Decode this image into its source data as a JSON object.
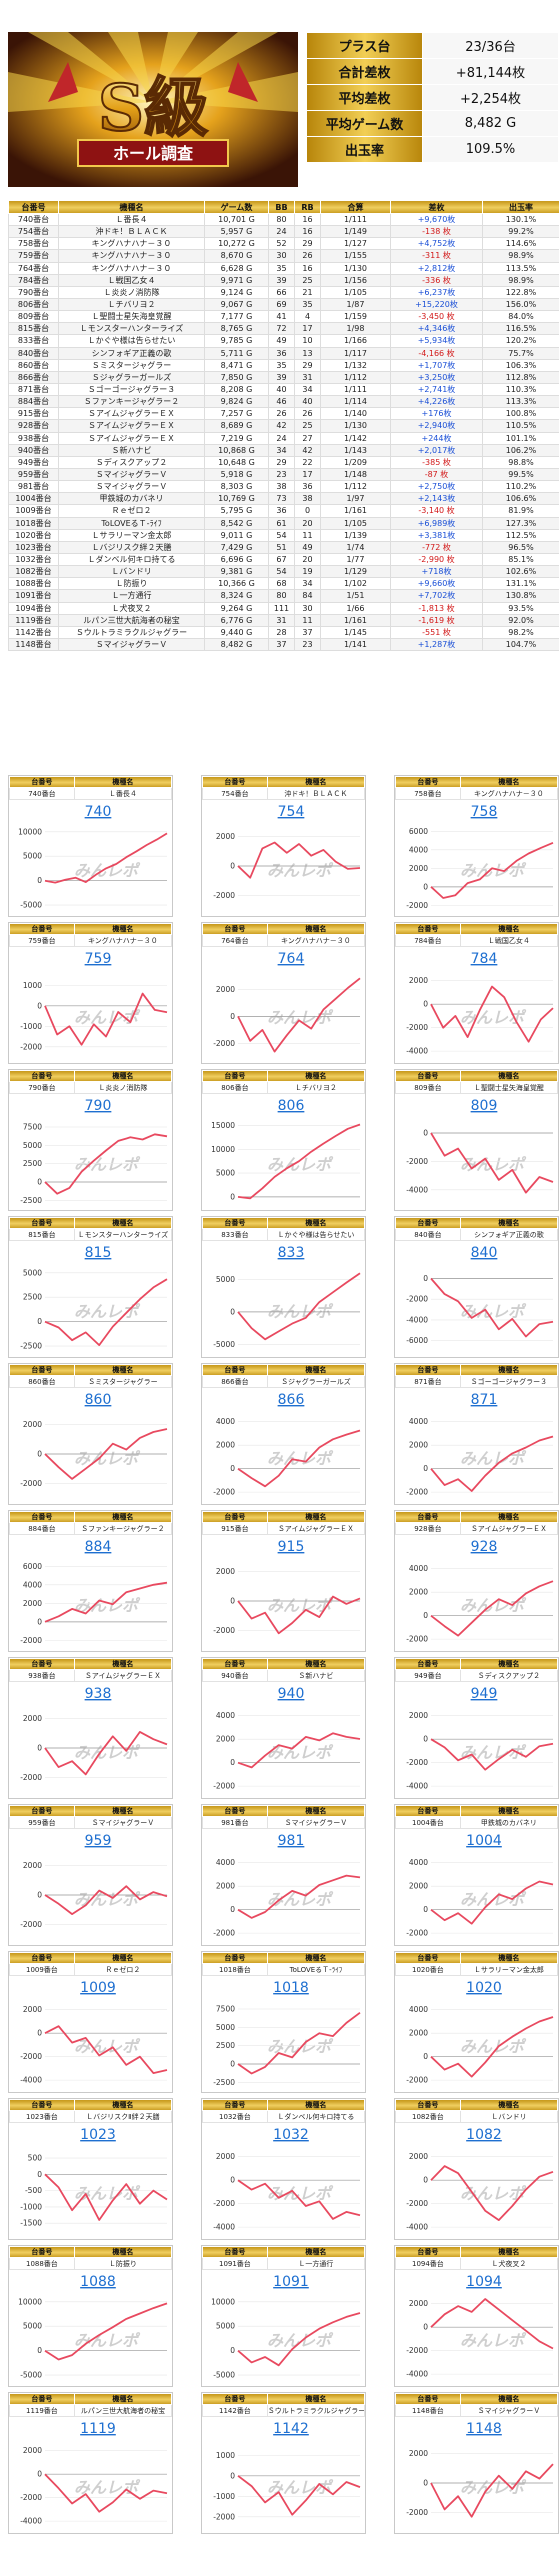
{
  "header": {
    "logo_text": "S級 ホール調査",
    "summary": [
      {
        "label": "プラス台",
        "value": "23/36台"
      },
      {
        "label": "合計差枚",
        "value": "+81,144枚"
      },
      {
        "label": "平均差枚",
        "value": "+2,254枚"
      },
      {
        "label": "平均ゲーム数",
        "value": "8,482 G"
      },
      {
        "label": "出玉率",
        "value": "109.5%"
      }
    ]
  },
  "table": {
    "columns": [
      "台番号",
      "機種名",
      "ゲーム数",
      "BB",
      "RB",
      "合算",
      "差枚",
      "出玉率"
    ],
    "rows": [
      [
        "740番台",
        "Ｌ番長４",
        "10,701 G",
        "80",
        "16",
        "1/111",
        "+9,670枚",
        "130.1%"
      ],
      [
        "754番台",
        "沖ドキ！ＢＬＡＣＫ",
        "5,957 G",
        "24",
        "16",
        "1/149",
        "-138 枚",
        "99.2%"
      ],
      [
        "758番台",
        "キングハナハナ－３０",
        "10,272 G",
        "52",
        "29",
        "1/127",
        "+4,752枚",
        "114.6%"
      ],
      [
        "759番台",
        "キングハナハナ－３０",
        "8,670 G",
        "30",
        "26",
        "1/155",
        "-311 枚",
        "98.9%"
      ],
      [
        "764番台",
        "キングハナハナ－３０",
        "6,628 G",
        "35",
        "16",
        "1/130",
        "+2,812枚",
        "113.5%"
      ],
      [
        "784番台",
        "Ｌ戦国乙女４",
        "9,971 G",
        "39",
        "25",
        "1/156",
        "-336 枚",
        "98.9%"
      ],
      [
        "790番台",
        "Ｌ炎炎ノ消防隊",
        "9,124 G",
        "66",
        "21",
        "1/105",
        "+6,237枚",
        "122.8%"
      ],
      [
        "806番台",
        "Ｌチバリヨ２",
        "9,067 G",
        "69",
        "35",
        "1/87",
        "+15,220枚",
        "156.0%"
      ],
      [
        "809番台",
        "Ｌ聖闘士星矢海皇覚醒",
        "7,177 G",
        "41",
        "4",
        "1/159",
        "-3,450 枚",
        "84.0%"
      ],
      [
        "815番台",
        "Ｌモンスターハンターライズ",
        "8,765 G",
        "72",
        "17",
        "1/98",
        "+4,346枚",
        "116.5%"
      ],
      [
        "833番台",
        "Ｌかぐや様は告らせたい",
        "9,785 G",
        "49",
        "10",
        "1/166",
        "+5,934枚",
        "120.2%"
      ],
      [
        "840番台",
        "シンフォギア正義の歌",
        "5,711 G",
        "36",
        "13",
        "1/117",
        "-4,166 枚",
        "75.7%"
      ],
      [
        "860番台",
        "Ｓミスタージャグラー",
        "8,471 G",
        "35",
        "29",
        "1/132",
        "+1,707枚",
        "106.3%"
      ],
      [
        "866番台",
        "Ｓジャグラーガールズ",
        "7,850 G",
        "39",
        "31",
        "1/112",
        "+3,250枚",
        "112.8%"
      ],
      [
        "871番台",
        "Ｓゴーゴージャグラー３",
        "8,208 G",
        "40",
        "34",
        "1/111",
        "+2,741枚",
        "110.3%"
      ],
      [
        "884番台",
        "Ｓファンキージャグラー２",
        "9,824 G",
        "46",
        "40",
        "1/114",
        "+4,226枚",
        "113.3%"
      ],
      [
        "915番台",
        "ＳアイムジャグラーＥＸ",
        "7,257 G",
        "26",
        "26",
        "1/140",
        "+176枚",
        "100.8%"
      ],
      [
        "928番台",
        "ＳアイムジャグラーＥＸ",
        "8,689 G",
        "42",
        "25",
        "1/130",
        "+2,940枚",
        "110.5%"
      ],
      [
        "938番台",
        "ＳアイムジャグラーＥＸ",
        "7,219 G",
        "24",
        "27",
        "1/142",
        "+244枚",
        "101.1%"
      ],
      [
        "940番台",
        "Ｓ新ハナビ",
        "10,868 G",
        "34",
        "42",
        "1/143",
        "+2,017枚",
        "106.2%"
      ],
      [
        "949番台",
        "Ｓディスクアップ２",
        "10,648 G",
        "29",
        "22",
        "1/209",
        "-385 枚",
        "98.8%"
      ],
      [
        "959番台",
        "ＳマイジャグラーＶ",
        "5,918 G",
        "23",
        "17",
        "1/148",
        "-87 枚",
        "99.5%"
      ],
      [
        "981番台",
        "ＳマイジャグラーＶ",
        "8,303 G",
        "38",
        "36",
        "1/112",
        "+2,750枚",
        "110.2%"
      ],
      [
        "1004番台",
        "甲鉄城のカバネリ",
        "10,769 G",
        "73",
        "38",
        "1/97",
        "+2,143枚",
        "106.6%"
      ],
      [
        "1009番台",
        "Ｒｅゼロ２",
        "5,795 G",
        "36",
        "0",
        "1/161",
        "-3,140 枚",
        "81.9%"
      ],
      [
        "1018番台",
        "ToLOVEるＴ-ﾗｲﾌ",
        "8,542 G",
        "61",
        "20",
        "1/105",
        "+6,989枚",
        "127.3%"
      ],
      [
        "1020番台",
        "Ｌサラリーマン金太郎",
        "9,011 G",
        "54",
        "11",
        "1/139",
        "+3,381枚",
        "112.5%"
      ],
      [
        "1023番台",
        "Ｌバジリスク絆２天膳",
        "7,429 G",
        "51",
        "49",
        "1/74",
        "-772 枚",
        "96.5%"
      ],
      [
        "1032番台",
        "Ｌダンベル何キロ持てる",
        "6,696 G",
        "67",
        "20",
        "1/77",
        "-2,990 枚",
        "85.1%"
      ],
      [
        "1082番台",
        "Ｌバンドリ",
        "9,381 G",
        "54",
        "19",
        "1/129",
        "+718枚",
        "102.6%"
      ],
      [
        "1088番台",
        "Ｌ防振り",
        "10,366 G",
        "68",
        "34",
        "1/102",
        "+9,660枚",
        "131.1%"
      ],
      [
        "1091番台",
        "Ｌ一方通行",
        "8,324 G",
        "80",
        "84",
        "1/51",
        "+7,702枚",
        "130.8%"
      ],
      [
        "1094番台",
        "Ｌ犬夜叉２",
        "9,264 G",
        "111",
        "30",
        "1/66",
        "-1,813 枚",
        "93.5%"
      ],
      [
        "1119番台",
        "ルパン三世大航海者の秘宝",
        "6,776 G",
        "31",
        "11",
        "1/161",
        "-1,619 枚",
        "92.0%"
      ],
      [
        "1142番台",
        "Ｓウルトラミラクルジャグラー",
        "9,440 G",
        "28",
        "37",
        "1/145",
        "-551 枚",
        "98.2%"
      ],
      [
        "1148番台",
        "ＳマイジャグラーＶ",
        "8,482 G",
        "37",
        "23",
        "1/141",
        "+1,287枚",
        "104.7%"
      ]
    ]
  },
  "cards_header": {
    "num": "台番号",
    "name": "機種名"
  },
  "watermark": "みんレポ",
  "cards": [
    {
      "dai": "740番台",
      "name": "Ｌ番長４",
      "link": "740",
      "yt": [
        "10000",
        "5000",
        "0",
        "-5000"
      ],
      "ymin": -6000,
      "ymax": 12000,
      "pts": [
        0,
        -400,
        200,
        600,
        -300,
        1200,
        2500,
        3400,
        4800,
        6000,
        7300,
        8400,
        9670
      ]
    },
    {
      "dai": "754番台",
      "name": "沖ドキ！ＢＬＡＣＫ",
      "link": "754",
      "yt": [
        "2000",
        "0",
        "-2000"
      ],
      "ymin": -3000,
      "ymax": 3000,
      "pts": [
        0,
        -800,
        1200,
        1600,
        900,
        1500,
        700,
        1100,
        300,
        -200,
        -138
      ]
    },
    {
      "dai": "758番台",
      "name": "キングハナハナ－３０",
      "link": "758",
      "yt": [
        "6000",
        "4000",
        "2000",
        "0",
        "-2000"
      ],
      "ymin": -2500,
      "ymax": 7000,
      "pts": [
        0,
        -1200,
        -900,
        400,
        800,
        2000,
        1700,
        2800,
        3600,
        4200,
        4752
      ]
    },
    {
      "dai": "759番台",
      "name": "キングハナハナ－３０",
      "link": "759",
      "yt": [
        "1000",
        "0",
        "-1000",
        "-2000"
      ],
      "ymin": -2500,
      "ymax": 1800,
      "pts": [
        0,
        -1400,
        -1000,
        -1900,
        -900,
        -1500,
        -300,
        -800,
        600,
        -200,
        -311
      ]
    },
    {
      "dai": "764番台",
      "name": "キングハナハナ－３０",
      "link": "764",
      "yt": [
        "2000",
        "0",
        "-2000"
      ],
      "ymin": -3000,
      "ymax": 3500,
      "pts": [
        0,
        -1800,
        -1000,
        -2600,
        -1400,
        -300,
        -900,
        500,
        1300,
        2100,
        2812
      ]
    },
    {
      "dai": "784番台",
      "name": "Ｌ戦国乙女４",
      "link": "784",
      "yt": [
        "2000",
        "0",
        "-2000",
        "-4000"
      ],
      "ymin": -4500,
      "ymax": 3000,
      "pts": [
        0,
        -2000,
        -1000,
        -2800,
        -500,
        1500,
        600,
        -1500,
        -3200,
        -1300,
        -336
      ]
    },
    {
      "dai": "790番台",
      "name": "Ｌ炎炎ノ消防隊",
      "link": "790",
      "yt": [
        "7500",
        "5000",
        "2500",
        "0",
        "-2500"
      ],
      "ymin": -3000,
      "ymax": 9000,
      "pts": [
        0,
        -1600,
        -800,
        1400,
        2900,
        4300,
        5600,
        6100,
        5800,
        6500,
        6237
      ]
    },
    {
      "dai": "806番台",
      "name": "Ｌチバリヨ２",
      "link": "806",
      "yt": [
        "15000",
        "10000",
        "5000",
        "0"
      ],
      "ymin": -1500,
      "ymax": 17000,
      "pts": [
        0,
        -300,
        1800,
        4200,
        6000,
        7500,
        9500,
        11200,
        12800,
        14300,
        15220
      ]
    },
    {
      "dai": "809番台",
      "name": "Ｌ聖闘士星矢海皇覚醒",
      "link": "809",
      "yt": [
        "0",
        "-2000",
        "-4000"
      ],
      "ymin": -5000,
      "ymax": 1200,
      "pts": [
        0,
        -1600,
        -1100,
        -2500,
        -1800,
        -3300,
        -2600,
        -4200,
        -3100,
        -3450
      ]
    },
    {
      "dai": "815番台",
      "name": "Ｌモンスターハンターライズ",
      "link": "815",
      "yt": [
        "5000",
        "2500",
        "0",
        "-2500"
      ],
      "ymin": -3000,
      "ymax": 6000,
      "pts": [
        0,
        -600,
        -1900,
        -1100,
        -2400,
        -500,
        900,
        2300,
        3500,
        4346
      ]
    },
    {
      "dai": "833番台",
      "name": "Ｌかぐや様は告らせたい",
      "link": "833",
      "yt": [
        "5000",
        "0",
        "-5000"
      ],
      "ymin": -6000,
      "ymax": 7500,
      "pts": [
        0,
        -2500,
        -4200,
        -3000,
        -1800,
        -900,
        1500,
        3000,
        4500,
        5934
      ]
    },
    {
      "dai": "840番台",
      "name": "シンフォギア正義の歌",
      "link": "840",
      "yt": [
        "0",
        "-2000",
        "-4000",
        "-6000"
      ],
      "ymin": -7000,
      "ymax": 1500,
      "pts": [
        0,
        -1500,
        -2200,
        -3800,
        -3000,
        -4900,
        -3900,
        -5600,
        -4400,
        -4166
      ]
    },
    {
      "dai": "860番台",
      "name": "Ｓミスタージャグラー",
      "link": "860",
      "yt": [
        "2000",
        "0",
        "-2000"
      ],
      "ymin": -3000,
      "ymax": 3000,
      "pts": [
        0,
        -900,
        -1700,
        -1000,
        -300,
        700,
        300,
        1100,
        1500,
        1707
      ]
    },
    {
      "dai": "866番台",
      "name": "Ｓジャグラーガールズ",
      "link": "866",
      "yt": [
        "4000",
        "2000",
        "0",
        "-2000"
      ],
      "ymin": -2500,
      "ymax": 5000,
      "pts": [
        0,
        -800,
        -1500,
        -600,
        800,
        600,
        1800,
        2500,
        2900,
        3250
      ]
    },
    {
      "dai": "871番台",
      "name": "Ｓゴーゴージャグラー３",
      "link": "871",
      "yt": [
        "4000",
        "2000",
        "0",
        "-2000"
      ],
      "ymin": -2500,
      "ymax": 5000,
      "pts": [
        0,
        -1400,
        -900,
        -1900,
        -600,
        500,
        1300,
        1800,
        2400,
        2741
      ]
    },
    {
      "dai": "884番台",
      "name": "Ｓファンキージャグラー２",
      "link": "884",
      "yt": [
        "6000",
        "4000",
        "2000",
        "0",
        "-2000"
      ],
      "ymin": -2500,
      "ymax": 7000,
      "pts": [
        0,
        600,
        1400,
        900,
        2300,
        1900,
        3200,
        3600,
        4000,
        4226
      ]
    },
    {
      "dai": "915番台",
      "name": "ＳアイムジャグラーＥＸ",
      "link": "915",
      "yt": [
        "2000",
        "0",
        "-2000"
      ],
      "ymin": -3000,
      "ymax": 3000,
      "pts": [
        0,
        -1200,
        -800,
        -2200,
        -1500,
        -600,
        -1100,
        300,
        -200,
        176
      ]
    },
    {
      "dai": "928番台",
      "name": "ＳアイムジャグラーＥＸ",
      "link": "928",
      "yt": [
        "4000",
        "2000",
        "0",
        "-2000"
      ],
      "ymin": -2500,
      "ymax": 5000,
      "pts": [
        0,
        -900,
        -1700,
        -600,
        500,
        1400,
        900,
        1900,
        2500,
        2940
      ]
    },
    {
      "dai": "938番台",
      "name": "ＳアイムジャグラーＥＸ",
      "link": "938",
      "yt": [
        "2000",
        "0",
        "-2000"
      ],
      "ymin": -3000,
      "ymax": 3000,
      "pts": [
        0,
        -1300,
        -900,
        -1800,
        -400,
        800,
        -200,
        1100,
        600,
        244
      ]
    },
    {
      "dai": "940番台",
      "name": "Ｓ新ハナビ",
      "link": "940",
      "yt": [
        "4000",
        "2000",
        "0",
        "-2000"
      ],
      "ymin": -2500,
      "ymax": 5000,
      "pts": [
        0,
        -400,
        600,
        1500,
        1200,
        2200,
        1900,
        2500,
        2200,
        2017
      ]
    },
    {
      "dai": "949番台",
      "name": "Ｓディスクアップ２",
      "link": "949",
      "yt": [
        "2000",
        "0",
        "-2000",
        "-4000"
      ],
      "ymin": -4500,
      "ymax": 3000,
      "pts": [
        0,
        -700,
        -1800,
        -1300,
        -2600,
        -1700,
        -900,
        -1500,
        -600,
        -385
      ]
    },
    {
      "dai": "959番台",
      "name": "ＳマイジャグラーＶ",
      "link": "959",
      "yt": [
        "2000",
        "0",
        "-2000"
      ],
      "ymin": -3000,
      "ymax": 3000,
      "pts": [
        0,
        -600,
        -1300,
        -700,
        300,
        -200,
        600,
        -300,
        200,
        -87
      ]
    },
    {
      "dai": "981番台",
      "name": "ＳマイジャグラーＶ",
      "link": "981",
      "yt": [
        "4000",
        "2000",
        "0",
        "-2000"
      ],
      "ymin": -2500,
      "ymax": 5000,
      "pts": [
        0,
        -700,
        -200,
        800,
        1600,
        1200,
        2100,
        2500,
        2900,
        2750
      ]
    },
    {
      "dai": "1004番台",
      "name": "甲鉄城のカバネリ",
      "link": "1004",
      "yt": [
        "4000",
        "2000",
        "0",
        "-2000"
      ],
      "ymin": -2500,
      "ymax": 5000,
      "pts": [
        0,
        -900,
        -300,
        -1200,
        200,
        1300,
        900,
        1800,
        2400,
        2143
      ]
    },
    {
      "dai": "1009番台",
      "name": "Ｒｅゼロ２",
      "link": "1009",
      "yt": [
        "2000",
        "0",
        "-2000",
        "-4000"
      ],
      "ymin": -4500,
      "ymax": 3000,
      "pts": [
        0,
        600,
        -800,
        -400,
        -1900,
        -1200,
        -2700,
        -2000,
        -3400,
        -3140
      ]
    },
    {
      "dai": "1018番台",
      "name": "ToLOVEるＴ-ﾗｲﾌ",
      "link": "1018",
      "yt": [
        "7500",
        "5000",
        "2500",
        "0",
        "-2500"
      ],
      "ymin": -3000,
      "ymax": 9000,
      "pts": [
        0,
        -1300,
        -400,
        1500,
        900,
        3000,
        4200,
        3800,
        5600,
        6989
      ]
    },
    {
      "dai": "1020番台",
      "name": "Ｌサラリーマン金太郎",
      "link": "1020",
      "yt": [
        "4000",
        "2000",
        "0",
        "-2000"
      ],
      "ymin": -2500,
      "ymax": 5000,
      "pts": [
        0,
        -1100,
        -600,
        -1700,
        -500,
        900,
        1700,
        2400,
        3000,
        3381
      ]
    },
    {
      "dai": "1023番台",
      "name": "ＬバジリスクⅡ絆２天膳",
      "link": "1023",
      "yt": [
        "500",
        "0",
        "-500",
        "-1000",
        "-1500"
      ],
      "ymin": -1800,
      "ymax": 900,
      "pts": [
        0,
        -400,
        -1100,
        -600,
        -1400,
        -800,
        -300,
        -900,
        -500,
        -772
      ]
    },
    {
      "dai": "1032番台",
      "name": "Ｌダンベル何キロ持てる",
      "link": "1032",
      "yt": [
        "2000",
        "0",
        "-2000",
        "-4000"
      ],
      "ymin": -4500,
      "ymax": 3000,
      "pts": [
        0,
        -800,
        -300,
        -1500,
        -900,
        -2200,
        -1800,
        -3300,
        -2700,
        -2990
      ]
    },
    {
      "dai": "1082番台",
      "name": "Ｌバンドリ",
      "link": "1082",
      "yt": [
        "2000",
        "0",
        "-2000",
        "-4000"
      ],
      "ymin": -4500,
      "ymax": 3000,
      "pts": [
        0,
        1200,
        600,
        -1000,
        -2600,
        -3400,
        -2200,
        -800,
        300,
        718
      ]
    },
    {
      "dai": "1088番台",
      "name": "Ｌ防振り",
      "link": "1088",
      "yt": [
        "10000",
        "5000",
        "0",
        "-5000"
      ],
      "ymin": -6000,
      "ymax": 12000,
      "pts": [
        0,
        -1800,
        -900,
        1400,
        3200,
        4800,
        6500,
        7600,
        8700,
        9660
      ]
    },
    {
      "dai": "1091番台",
      "name": "Ｌ一方通行",
      "link": "1091",
      "yt": [
        "10000",
        "5000",
        "0",
        "-5000"
      ],
      "ymin": -6000,
      "ymax": 12000,
      "pts": [
        0,
        -2400,
        -1300,
        -3000,
        300,
        2700,
        4500,
        5800,
        6900,
        7702
      ]
    },
    {
      "dai": "1094番台",
      "name": "Ｌ犬夜叉２",
      "link": "1094",
      "yt": [
        "2000",
        "0",
        "-2000",
        "-4000"
      ],
      "ymin": -4500,
      "ymax": 3000,
      "pts": [
        0,
        1100,
        1800,
        1300,
        2400,
        1500,
        600,
        -300,
        -1200,
        -1813
      ]
    },
    {
      "dai": "1119番台",
      "name": "ルパン三世大航海者の秘宝",
      "link": "1119",
      "yt": [
        "2000",
        "0",
        "-2000",
        "-4000"
      ],
      "ymin": -4500,
      "ymax": 3000,
      "pts": [
        0,
        -1200,
        -2500,
        -1700,
        -3200,
        -2400,
        -1300,
        -2100,
        -1400,
        -1619
      ]
    },
    {
      "dai": "1142番台",
      "name": "Ｓウルトラミラクルジャグラー",
      "link": "1142",
      "yt": [
        "1000",
        "0",
        "-1000",
        "-2000"
      ],
      "ymin": -2500,
      "ymax": 1800,
      "pts": [
        0,
        -500,
        -1300,
        -800,
        -1900,
        -1200,
        -400,
        -900,
        -300,
        -551
      ]
    },
    {
      "dai": "1148番台",
      "name": "ＳマイジャグラーＶ",
      "link": "1148",
      "yt": [
        "2000",
        "0",
        "-2000"
      ],
      "ymin": -3000,
      "ymax": 3000,
      "pts": [
        0,
        -1800,
        -900,
        -2300,
        -600,
        500,
        -400,
        800,
        300,
        1287
      ]
    }
  ]
}
